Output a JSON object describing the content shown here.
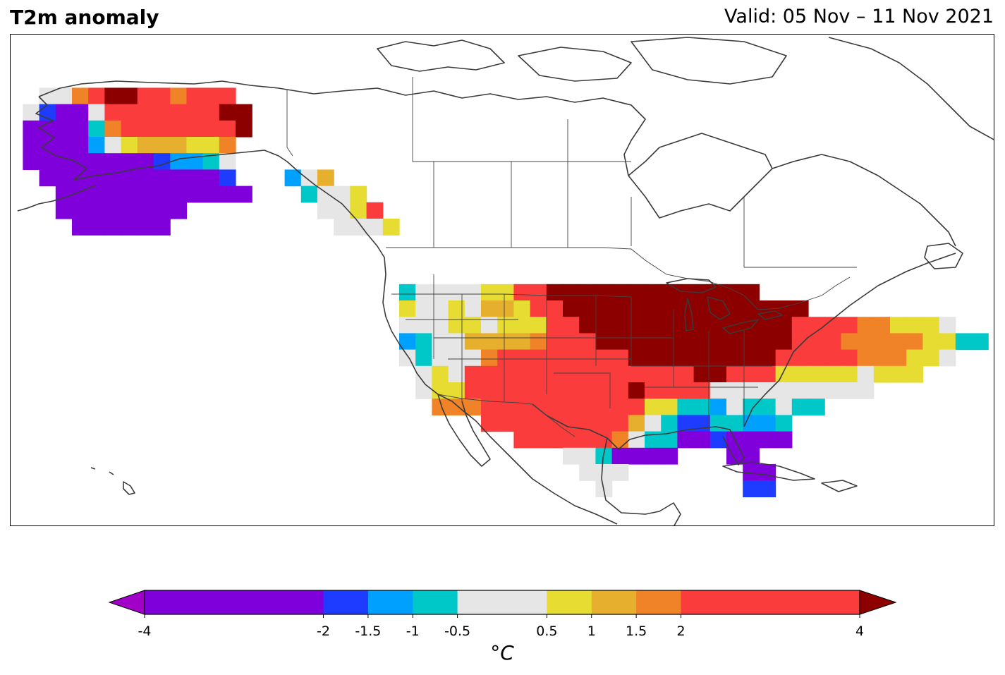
{
  "header": {
    "title": "T2m anomaly",
    "valid": "Valid: 05 Nov – 11 Nov 2021"
  },
  "colorbar": {
    "unit_label": "°C",
    "ticks": [
      -4,
      -2,
      -1.5,
      -1,
      -0.5,
      0.5,
      1,
      1.5,
      2,
      4
    ],
    "tick_labels": [
      "-4",
      "-2",
      "-1.5",
      "-1",
      "-0.5",
      "0.5",
      "1",
      "1.5",
      "2",
      "4"
    ],
    "bins": [
      {
        "from": -4,
        "to": -2,
        "color": "#8000dc"
      },
      {
        "from": -2,
        "to": -1.5,
        "color": "#1e3cff"
      },
      {
        "from": -1.5,
        "to": -1,
        "color": "#00a0ff"
      },
      {
        "from": -1,
        "to": -0.5,
        "color": "#00c8c8"
      },
      {
        "from": -0.5,
        "to": 0.5,
        "color": "#e6e6e6"
      },
      {
        "from": 0.5,
        "to": 1,
        "color": "#e6dc32"
      },
      {
        "from": 1,
        "to": 1.5,
        "color": "#e6af2d"
      },
      {
        "from": 1.5,
        "to": 2,
        "color": "#f08228"
      },
      {
        "from": 2,
        "to": 4,
        "color": "#fa3c3c"
      }
    ],
    "under_color": "#a000c8",
    "over_color": "#8c0000"
  },
  "map": {
    "region": "North America",
    "cell_size_deg": 2,
    "projection": "equirectangular"
  },
  "anomaly_legend_codes": {
    "P": "below -2",
    "B": "-2 to -1.5",
    "L": "-1.5 to -1",
    "C": "-1 to -0.5",
    "G": "-0.5 to 0.5",
    "Y": "0.5 to 1",
    "O": "1 to 1.5",
    "Q": "1.5 to 2",
    "R": "2 to 4",
    "D": "above 4"
  },
  "grid_rows": [
    {
      "lat": 72,
      "cells": [
        [
          -168,
          "GGQRDDRRQRRR"
        ]
      ]
    },
    {
      "lat": 70,
      "cells": [
        [
          -170,
          "GBPPGRRRRRRRDD"
        ]
      ]
    },
    {
      "lat": 68,
      "cells": [
        [
          -170,
          "PPPPCQRRRRRRRD"
        ]
      ]
    },
    {
      "lat": 66,
      "cells": [
        [
          -170,
          "PPPPLGYOOOYYQ"
        ]
      ]
    },
    {
      "lat": 64,
      "cells": [
        [
          -170,
          "PPPPPPPPBLLCG"
        ]
      ]
    },
    {
      "lat": 62,
      "cells": [
        [
          -168,
          "PPPPPPPPPPPB"
        ],
        [
          -138,
          "LGO"
        ]
      ]
    },
    {
      "lat": 60,
      "cells": [
        [
          -166,
          "PPPPPPPPPPPP"
        ],
        [
          -136,
          "CGGY"
        ]
      ]
    },
    {
      "lat": 58,
      "cells": [
        [
          -166,
          "PPPPPPPP"
        ],
        [
          -134,
          "GGYR"
        ]
      ]
    },
    {
      "lat": 56,
      "cells": [
        [
          -164,
          "PPPPPP"
        ],
        [
          -132,
          "GGGY"
        ]
      ]
    },
    {
      "lat": 48,
      "cells": [
        [
          -124,
          "CGGGGYYRRDDDDDDDDDDDDD"
        ]
      ]
    },
    {
      "lat": 46,
      "cells": [
        [
          -124,
          "YGGYGOOYRRDDDDDDDDDDDDDDD"
        ]
      ]
    },
    {
      "lat": 44,
      "cells": [
        [
          -124,
          "GGGYYGYYYRRDDDDDDDDDDDDDRRRRQQYYYG"
        ]
      ]
    },
    {
      "lat": 42,
      "cells": [
        [
          -124,
          "LCGGOOOOQRRRDDDDDDDDDDDDRRRQQQQQYYCC"
        ]
      ]
    },
    {
      "lat": 40,
      "cells": [
        [
          -124,
          "GCGGGQRRRRRRRRDDDDDDDDDRRRRRQQQYYG"
        ]
      ]
    },
    {
      "lat": 38,
      "cells": [
        [
          -122,
          "GYGRRRRRRRRRRRRRRDDRRRYYYYYGYYY"
        ]
      ]
    },
    {
      "lat": 36,
      "cells": [
        [
          -122,
          "GYYRRRRRRRRRRDRRRRGGGGGGGGGG"
        ]
      ]
    },
    {
      "lat": 34,
      "cells": [
        [
          -120,
          "QQQRRRRRRRRRRYYCCLGCCGCC"
        ]
      ]
    },
    {
      "lat": 32,
      "cells": [
        [
          -114,
          "RRRRRRRRROGCBBCCLLC"
        ]
      ]
    },
    {
      "lat": 30,
      "cells": [
        [
          -110,
          "RRRRRRQGCCPPBPPPP"
        ]
      ]
    },
    {
      "lat": 28,
      "cells": [
        [
          -104,
          "GGCPPPP"
        ],
        [
          -84,
          "PP"
        ]
      ]
    },
    {
      "lat": 26,
      "cells": [
        [
          -102,
          "GGG"
        ],
        [
          -82,
          "PP"
        ]
      ]
    },
    {
      "lat": 24,
      "cells": [
        [
          -100,
          "G"
        ],
        [
          -82,
          "BB"
        ]
      ]
    }
  ]
}
